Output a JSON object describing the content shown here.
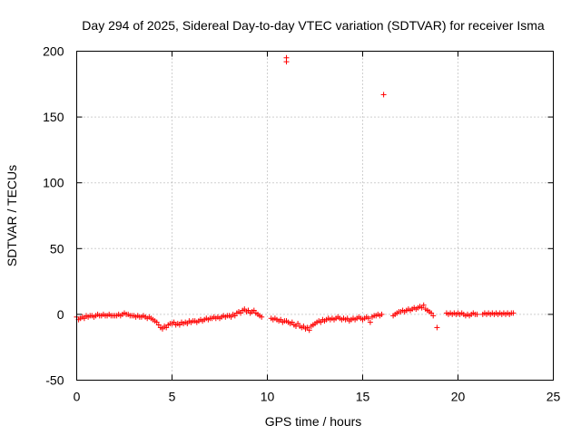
{
  "chart_data": {
    "type": "scatter",
    "title": "Day 294 of 2025, Sidereal Day-to-day VTEC variation (SDTVAR) for receiver Isma",
    "xlabel": "GPS time / hours",
    "ylabel": "SDTVAR / TECUs",
    "xlim": [
      0,
      25
    ],
    "ylim": [
      -50,
      200
    ],
    "xticks": [
      0,
      5,
      10,
      15,
      20,
      25
    ],
    "yticks": [
      -50,
      0,
      50,
      100,
      150,
      200
    ],
    "grid": true,
    "marker": "+",
    "color": "#ff0000",
    "series": [
      {
        "name": "SDTVAR",
        "points": [
          [
            0.0,
            -2
          ],
          [
            0.1,
            -4
          ],
          [
            0.2,
            -3
          ],
          [
            0.3,
            -2
          ],
          [
            0.4,
            -3
          ],
          [
            0.5,
            -1
          ],
          [
            0.6,
            -2
          ],
          [
            0.7,
            -1
          ],
          [
            0.8,
            -1
          ],
          [
            0.9,
            -2
          ],
          [
            1.0,
            -1
          ],
          [
            1.1,
            0
          ],
          [
            1.2,
            -1
          ],
          [
            1.3,
            -1
          ],
          [
            1.4,
            0
          ],
          [
            1.5,
            -1
          ],
          [
            1.6,
            -1
          ],
          [
            1.7,
            0
          ],
          [
            1.8,
            -1
          ],
          [
            1.9,
            -1
          ],
          [
            2.0,
            -1
          ],
          [
            2.1,
            -1
          ],
          [
            2.2,
            0
          ],
          [
            2.3,
            -1
          ],
          [
            2.4,
            0
          ],
          [
            2.5,
            1
          ],
          [
            2.6,
            0
          ],
          [
            2.7,
            0
          ],
          [
            2.8,
            -1
          ],
          [
            2.9,
            -1
          ],
          [
            3.0,
            -1
          ],
          [
            3.1,
            -2
          ],
          [
            3.2,
            -1
          ],
          [
            3.3,
            -2
          ],
          [
            3.4,
            -2
          ],
          [
            3.5,
            -1
          ],
          [
            3.6,
            -2
          ],
          [
            3.7,
            -3
          ],
          [
            3.8,
            -2
          ],
          [
            3.9,
            -3
          ],
          [
            4.0,
            -4
          ],
          [
            4.1,
            -5
          ],
          [
            4.2,
            -6
          ],
          [
            4.3,
            -8
          ],
          [
            4.4,
            -10
          ],
          [
            4.5,
            -11
          ],
          [
            4.6,
            -9
          ],
          [
            4.7,
            -10
          ],
          [
            4.8,
            -8
          ],
          [
            4.9,
            -7
          ],
          [
            5.0,
            -7
          ],
          [
            5.1,
            -6
          ],
          [
            5.2,
            -8
          ],
          [
            5.3,
            -7
          ],
          [
            5.4,
            -8
          ],
          [
            5.5,
            -6
          ],
          [
            5.6,
            -7
          ],
          [
            5.7,
            -6
          ],
          [
            5.8,
            -7
          ],
          [
            5.9,
            -5
          ],
          [
            6.0,
            -6
          ],
          [
            6.1,
            -5
          ],
          [
            6.2,
            -5
          ],
          [
            6.3,
            -6
          ],
          [
            6.4,
            -5
          ],
          [
            6.5,
            -4
          ],
          [
            6.6,
            -5
          ],
          [
            6.7,
            -4
          ],
          [
            6.8,
            -3
          ],
          [
            6.9,
            -4
          ],
          [
            7.0,
            -3
          ],
          [
            7.1,
            -3
          ],
          [
            7.2,
            -2
          ],
          [
            7.3,
            -3
          ],
          [
            7.4,
            -2
          ],
          [
            7.5,
            -3
          ],
          [
            7.6,
            -2
          ],
          [
            7.7,
            -1
          ],
          [
            7.8,
            -2
          ],
          [
            7.9,
            -1
          ],
          [
            8.0,
            -1
          ],
          [
            8.1,
            -2
          ],
          [
            8.2,
            0
          ],
          [
            8.3,
            -1
          ],
          [
            8.4,
            1
          ],
          [
            8.5,
            2
          ],
          [
            8.6,
            1
          ],
          [
            8.7,
            3
          ],
          [
            8.8,
            4
          ],
          [
            8.9,
            2
          ],
          [
            9.0,
            3
          ],
          [
            9.1,
            1
          ],
          [
            9.2,
            2
          ],
          [
            9.3,
            3
          ],
          [
            9.4,
            1
          ],
          [
            9.5,
            0
          ],
          [
            9.6,
            -1
          ],
          [
            9.7,
            -2
          ],
          [
            10.2,
            -3
          ],
          [
            10.3,
            -4
          ],
          [
            10.4,
            -3
          ],
          [
            10.5,
            -4
          ],
          [
            10.6,
            -5
          ],
          [
            10.7,
            -4
          ],
          [
            10.8,
            -6
          ],
          [
            10.9,
            -5
          ],
          [
            11.0,
            -5
          ],
          [
            11.1,
            -6
          ],
          [
            11.2,
            -7
          ],
          [
            11.3,
            -6
          ],
          [
            11.4,
            -8
          ],
          [
            11.5,
            -9
          ],
          [
            11.6,
            -7
          ],
          [
            11.7,
            -9
          ],
          [
            11.8,
            -10
          ],
          [
            11.9,
            -9
          ],
          [
            12.0,
            -11
          ],
          [
            12.1,
            -10
          ],
          [
            12.2,
            -12
          ],
          [
            12.3,
            -9
          ],
          [
            12.4,
            -8
          ],
          [
            12.5,
            -7
          ],
          [
            12.6,
            -6
          ],
          [
            12.7,
            -5
          ],
          [
            12.8,
            -6
          ],
          [
            12.9,
            -4
          ],
          [
            13.0,
            -5
          ],
          [
            13.1,
            -4
          ],
          [
            13.2,
            -3
          ],
          [
            13.3,
            -4
          ],
          [
            13.4,
            -3
          ],
          [
            13.5,
            -4
          ],
          [
            13.6,
            -3
          ],
          [
            13.7,
            -2
          ],
          [
            13.8,
            -3
          ],
          [
            13.9,
            -4
          ],
          [
            14.0,
            -3
          ],
          [
            14.1,
            -4
          ],
          [
            14.2,
            -3
          ],
          [
            14.3,
            -5
          ],
          [
            14.4,
            -4
          ],
          [
            14.5,
            -3
          ],
          [
            14.6,
            -4
          ],
          [
            14.7,
            -3
          ],
          [
            14.8,
            -2
          ],
          [
            14.9,
            -3
          ],
          [
            15.0,
            -4
          ],
          [
            15.1,
            -3
          ],
          [
            15.2,
            -2
          ],
          [
            15.3,
            -3
          ],
          [
            15.4,
            -6
          ],
          [
            15.5,
            -2
          ],
          [
            15.6,
            -1
          ],
          [
            15.7,
            -1
          ],
          [
            15.8,
            0
          ],
          [
            15.9,
            -1
          ],
          [
            16.0,
            0
          ],
          [
            16.6,
            -1
          ],
          [
            16.7,
            0
          ],
          [
            16.8,
            1
          ],
          [
            16.9,
            2
          ],
          [
            17.0,
            2
          ],
          [
            17.1,
            3
          ],
          [
            17.2,
            2
          ],
          [
            17.3,
            3
          ],
          [
            17.4,
            4
          ],
          [
            17.5,
            3
          ],
          [
            17.6,
            4
          ],
          [
            17.7,
            5
          ],
          [
            17.8,
            4
          ],
          [
            17.9,
            5
          ],
          [
            18.0,
            6
          ],
          [
            18.1,
            5
          ],
          [
            18.2,
            7
          ],
          [
            18.3,
            4
          ],
          [
            18.4,
            3
          ],
          [
            18.5,
            2
          ],
          [
            18.6,
            1
          ],
          [
            18.7,
            -1
          ],
          [
            18.9,
            -10
          ],
          [
            19.4,
            1
          ],
          [
            19.5,
            0
          ],
          [
            19.6,
            1
          ],
          [
            19.7,
            0
          ],
          [
            19.8,
            1
          ],
          [
            19.9,
            0
          ],
          [
            20.0,
            1
          ],
          [
            20.1,
            0
          ],
          [
            20.2,
            1
          ],
          [
            20.3,
            0
          ],
          [
            20.4,
            -1
          ],
          [
            20.5,
            0
          ],
          [
            20.6,
            -1
          ],
          [
            20.7,
            0
          ],
          [
            20.8,
            1
          ],
          [
            20.9,
            0
          ],
          [
            21.0,
            0
          ],
          [
            21.3,
            0
          ],
          [
            21.4,
            1
          ],
          [
            21.5,
            0
          ],
          [
            21.6,
            1
          ],
          [
            21.7,
            0
          ],
          [
            21.8,
            1
          ],
          [
            21.9,
            0
          ],
          [
            22.0,
            1
          ],
          [
            22.1,
            0
          ],
          [
            22.2,
            1
          ],
          [
            22.3,
            0
          ],
          [
            22.4,
            1
          ],
          [
            22.5,
            0
          ],
          [
            22.6,
            1
          ],
          [
            22.7,
            0
          ],
          [
            22.8,
            1
          ],
          [
            22.9,
            1
          ],
          [
            11.0,
            195
          ],
          [
            11.0,
            192
          ],
          [
            16.1,
            167
          ]
        ]
      }
    ]
  }
}
